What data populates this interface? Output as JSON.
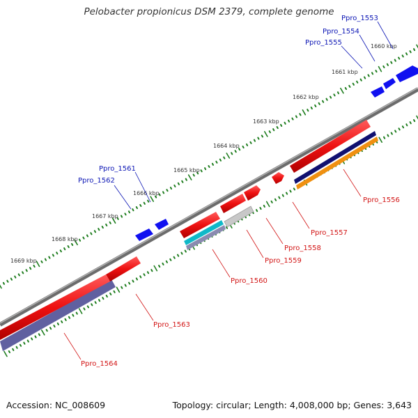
{
  "title": "Pelobacter propionicus DSM 2379, complete genome",
  "footer": {
    "accession": "Accession: NC_008609",
    "summary": "Topology: circular; Length: 4,008,000 bp; Genes: 3,643"
  },
  "colors": {
    "tick": "#1e7d1e",
    "genome_line": "#8a8a8a",
    "forward_label": "#0a14b4",
    "reverse_label": "#d21414",
    "forward_gene": "#1010f0",
    "reverse_gene": "#ee1111",
    "annotation_navy": "#101070",
    "annotation_orange": "#f09010",
    "annotation_gray": "#c8c8c8",
    "annotation_cyan": "#10b8c8",
    "annotation_slate": "#6060a0"
  },
  "scale_labels": [
    "1660 kbp",
    "1661 kbp",
    "1662 kbp",
    "1663 kbp",
    "1664 kbp",
    "1665 kbp",
    "1666 kbp",
    "1667 kbp",
    "1668 kbp",
    "1669 kbp"
  ],
  "forward_genes": [
    "Ppro_1553",
    "Ppro_1554",
    "Ppro_1555",
    "Ppro_1561",
    "Ppro_1562"
  ],
  "reverse_genes": [
    "Ppro_1556",
    "Ppro_1557",
    "Ppro_1558",
    "Ppro_1559",
    "Ppro_1560",
    "Ppro_1563",
    "Ppro_1564"
  ]
}
